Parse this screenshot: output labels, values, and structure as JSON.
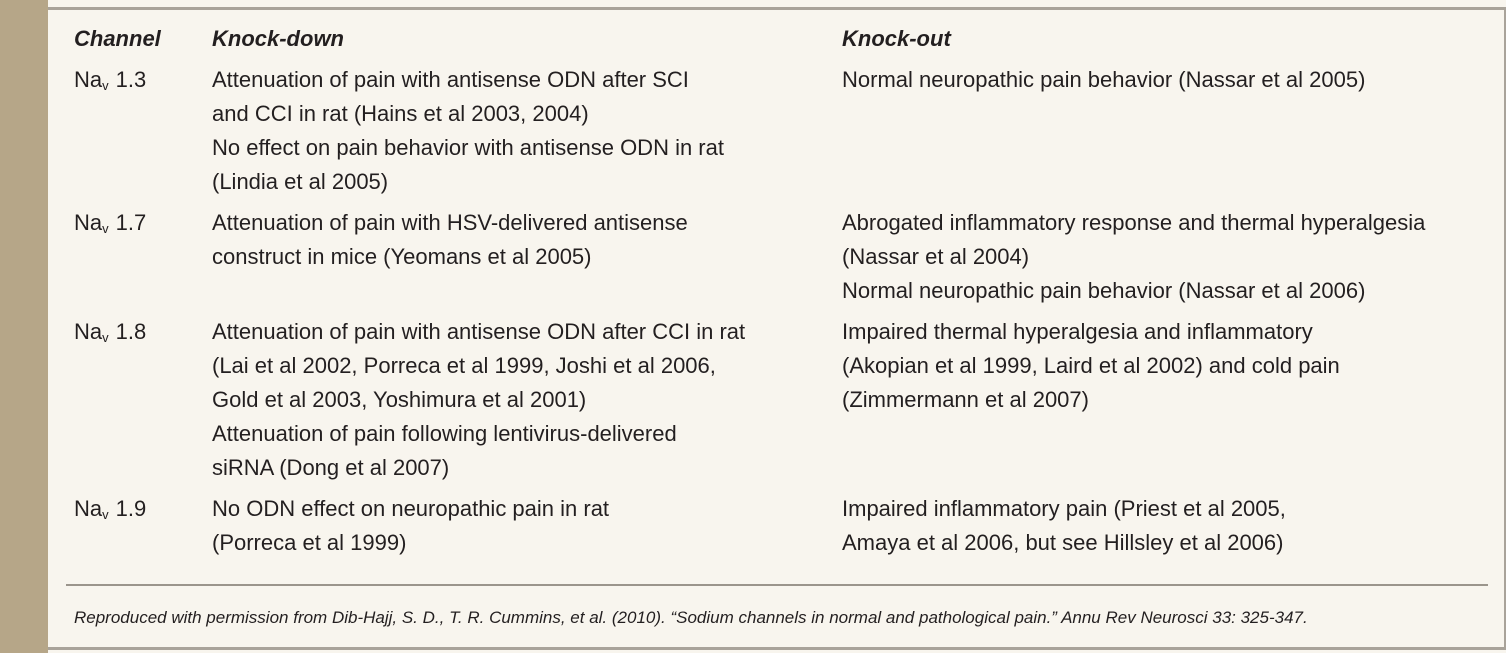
{
  "table": {
    "header": [
      "Channel",
      "Knock-down",
      "Knock-out"
    ],
    "rows": [
      {
        "channel": {
          "name": "Na",
          "sub": "v",
          "number": "1.3"
        },
        "knock_down": [
          [
            "Attenuation of pain with antisense ODN after SCI",
            "and CCI in rat (Hains et al 2003, 2004)"
          ],
          [
            "No effect on pain behavior with antisense ODN in rat",
            "(Lindia et al 2005)"
          ]
        ],
        "knock_out": [
          [
            "Normal neuropathic pain behavior (Nassar et al 2005)"
          ]
        ]
      },
      {
        "channel": {
          "name": "Na",
          "sub": "v",
          "number": "1.7"
        },
        "knock_down": [
          [
            "Attenuation of pain with HSV-delivered antisense",
            "construct in mice (Yeomans et al 2005)"
          ]
        ],
        "knock_out": [
          [
            "Abrogated inflammatory response and thermal hyperalgesia",
            "(Nassar et al 2004)"
          ],
          [
            "Normal neuropathic pain behavior (Nassar et al 2006)"
          ]
        ]
      },
      {
        "channel": {
          "name": "Na",
          "sub": "v",
          "number": "1.8"
        },
        "knock_down": [
          [
            "Attenuation of pain with antisense ODN after CCI in rat",
            "(Lai et al 2002, Porreca et al 1999, Joshi et al 2006,",
            "Gold et al 2003, Yoshimura et al 2001)"
          ],
          [
            "Attenuation of pain following lentivirus-delivered",
            "siRNA (Dong et al 2007)"
          ]
        ],
        "knock_out": [
          [
            "Impaired thermal hyperalgesia and inflammatory",
            "(Akopian et al 1999, Laird et al 2002) and cold pain",
            "(Zimmermann et al 2007)"
          ]
        ]
      },
      {
        "channel": {
          "name": "Na",
          "sub": "v",
          "number": "1.9"
        },
        "knock_down": [
          [
            "No ODN effect on neuropathic pain in rat",
            "(Porreca et al 1999)"
          ]
        ],
        "knock_out": [
          [
            "Impaired inflammatory pain (Priest et al 2005,",
            "Amaya et al 2006, but see Hillsley et al 2006)"
          ]
        ]
      }
    ]
  },
  "footnote": "Reproduced with permission from Dib-Hajj, S. D., T. R. Cummins, et al. (2010). “Sodium channels in normal and pathological pain.” Annu Rev Neurosci 33: 325-347."
}
